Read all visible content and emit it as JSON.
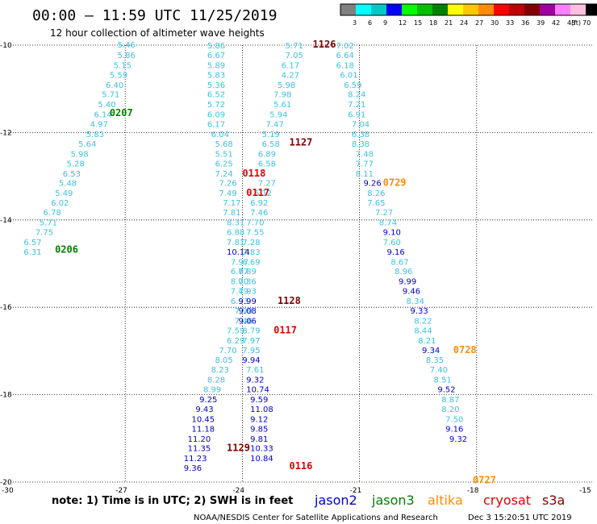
{
  "title": "00:00 — 11:59 UTC 11/25/2019",
  "subtitle": "12 hour collection of altimeter wave heights",
  "colorbar": {
    "unit": "(ft)",
    "labels": [
      "3",
      "6",
      "9",
      "12",
      "15",
      "18",
      "21",
      "24",
      "27",
      "30",
      "33",
      "36",
      "39",
      "42",
      "45",
      "70"
    ],
    "colors": [
      "#808080",
      "#00ffff",
      "#00c8c8",
      "#0000ff",
      "#00ff00",
      "#00c000",
      "#008000",
      "#ffff00",
      "#ffc800",
      "#ff8c00",
      "#ff0000",
      "#c00000",
      "#800000",
      "#a000a0",
      "#ff80ff",
      "#ffc0e0",
      "#000000"
    ]
  },
  "note": "note: 1) Time is in UTC; 2) SWH is in feet",
  "satellites": [
    {
      "name": "jason2",
      "color": "#0000cc"
    },
    {
      "name": "jason3",
      "color": "#008000"
    },
    {
      "name": "altika",
      "color": "#ff8c00"
    },
    {
      "name": "cryosat",
      "color": "#e00000"
    },
    {
      "name": "s3a",
      "color": "#800000"
    }
  ],
  "credit": "NOAA/NESDIS Center for Satellite Applications and Research",
  "timestamp": "Dec  3 15:20:51 UTC 2019",
  "chart_data": {
    "type": "scatter",
    "xlim": [
      -30,
      -15
    ],
    "ylim": [
      -20,
      -10
    ],
    "xticks": [
      -30,
      -27,
      -24,
      -21,
      -18,
      -15
    ],
    "yticks": [
      -10,
      -12,
      -14,
      -16,
      -18,
      -20
    ],
    "grid": true,
    "labels": [
      {
        "text": "5.46",
        "x": -27.2,
        "y": -9.98,
        "color": "#40c0e0"
      },
      {
        "text": "5.86",
        "x": -27.2,
        "y": -10.22,
        "color": "#40c0e0"
      },
      {
        "text": "5.15",
        "x": -27.3,
        "y": -10.45,
        "color": "#40c0e0"
      },
      {
        "text": "5.59",
        "x": -27.4,
        "y": -10.67,
        "color": "#40c0e0"
      },
      {
        "text": "6.40",
        "x": -27.5,
        "y": -10.9,
        "color": "#40c0e0"
      },
      {
        "text": "5.71",
        "x": -27.6,
        "y": -11.12,
        "color": "#40c0e0"
      },
      {
        "text": "5.40",
        "x": -27.7,
        "y": -11.35,
        "color": "#40c0e0"
      },
      {
        "text": "6.14",
        "x": -27.8,
        "y": -11.58,
        "color": "#40c0e0"
      },
      {
        "text": "4.97",
        "x": -27.9,
        "y": -11.8,
        "color": "#40c0e0"
      },
      {
        "text": "5.83",
        "x": -28.0,
        "y": -12.03,
        "color": "#40c0e0"
      },
      {
        "text": "5.64",
        "x": -28.2,
        "y": -12.25,
        "color": "#40c0e0"
      },
      {
        "text": "5.98",
        "x": -28.4,
        "y": -12.48,
        "color": "#40c0e0"
      },
      {
        "text": "5.28",
        "x": -28.5,
        "y": -12.7,
        "color": "#40c0e0"
      },
      {
        "text": "6.53",
        "x": -28.6,
        "y": -12.93,
        "color": "#40c0e0"
      },
      {
        "text": "5.48",
        "x": -28.7,
        "y": -13.15,
        "color": "#40c0e0"
      },
      {
        "text": "5.49",
        "x": -28.8,
        "y": -13.38,
        "color": "#40c0e0"
      },
      {
        "text": "6.02",
        "x": -28.9,
        "y": -13.6,
        "color": "#40c0e0"
      },
      {
        "text": "6.78",
        "x": -29.1,
        "y": -13.82,
        "color": "#40c0e0"
      },
      {
        "text": "5.71",
        "x": -29.2,
        "y": -14.05,
        "color": "#40c0e0"
      },
      {
        "text": "7.75",
        "x": -29.3,
        "y": -14.27,
        "color": "#40c0e0"
      },
      {
        "text": "6.57",
        "x": -29.6,
        "y": -14.5,
        "color": "#40c0e0"
      },
      {
        "text": "6.31",
        "x": -29.6,
        "y": -14.72,
        "color": "#40c0e0"
      },
      {
        "text": "0207",
        "x": -27.4,
        "y": -11.55,
        "color": "#008000",
        "pass": true
      },
      {
        "text": "0206",
        "x": -28.8,
        "y": -14.68,
        "color": "#008000",
        "pass": true
      },
      {
        "text": "5.86",
        "x": -24.9,
        "y": -10.0,
        "color": "#40c0e0"
      },
      {
        "text": "6.67",
        "x": -24.9,
        "y": -10.22,
        "color": "#40c0e0"
      },
      {
        "text": "5.89",
        "x": -24.9,
        "y": -10.45,
        "color": "#40c0e0"
      },
      {
        "text": "5.83",
        "x": -24.9,
        "y": -10.67,
        "color": "#40c0e0"
      },
      {
        "text": "5.36",
        "x": -24.9,
        "y": -10.9,
        "color": "#40c0e0"
      },
      {
        "text": "6.52",
        "x": -24.9,
        "y": -11.12,
        "color": "#40c0e0"
      },
      {
        "text": "5.72",
        "x": -24.9,
        "y": -11.35,
        "color": "#40c0e0"
      },
      {
        "text": "6.09",
        "x": -24.9,
        "y": -11.58,
        "color": "#40c0e0"
      },
      {
        "text": "6.17",
        "x": -24.9,
        "y": -11.8,
        "color": "#40c0e0"
      },
      {
        "text": "6.04",
        "x": -24.8,
        "y": -12.03,
        "color": "#40c0e0"
      },
      {
        "text": "5.68",
        "x": -24.7,
        "y": -12.25,
        "color": "#40c0e0"
      },
      {
        "text": "5.51",
        "x": -24.7,
        "y": -12.48,
        "color": "#40c0e0"
      },
      {
        "text": "6.25",
        "x": -24.7,
        "y": -12.7,
        "color": "#40c0e0"
      },
      {
        "text": "7.24",
        "x": -24.7,
        "y": -12.93,
        "color": "#40c0e0"
      },
      {
        "text": "7.26",
        "x": -24.6,
        "y": -13.15,
        "color": "#40c0e0"
      },
      {
        "text": "7.49",
        "x": -24.6,
        "y": -13.38,
        "color": "#40c0e0"
      },
      {
        "text": "7.17",
        "x": -24.5,
        "y": -13.6,
        "color": "#40c0e0"
      },
      {
        "text": "7.81",
        "x": -24.5,
        "y": -13.82,
        "color": "#40c0e0"
      },
      {
        "text": "8.31",
        "x": -24.4,
        "y": -14.05,
        "color": "#40c0e0"
      },
      {
        "text": "6.88",
        "x": -24.4,
        "y": -14.27,
        "color": "#40c0e0"
      },
      {
        "text": "7.81",
        "x": -24.4,
        "y": -14.5,
        "color": "#40c0e0"
      },
      {
        "text": "10.14",
        "x": -24.4,
        "y": -14.72,
        "color": "#0000cc"
      },
      {
        "text": "7.97",
        "x": -24.3,
        "y": -14.95,
        "color": "#40c0e0"
      },
      {
        "text": "6.77",
        "x": -24.3,
        "y": -15.17,
        "color": "#40c0e0"
      },
      {
        "text": "8.00",
        "x": -24.3,
        "y": -15.4,
        "color": "#40c0e0"
      },
      {
        "text": "7.49",
        "x": -24.3,
        "y": -15.62,
        "color": "#40c0e0"
      },
      {
        "text": "6.93",
        "x": -24.3,
        "y": -15.85,
        "color": "#40c0e0"
      },
      {
        "text": "7.99",
        "x": -24.2,
        "y": -16.07,
        "color": "#40c0e0"
      },
      {
        "text": "7.46",
        "x": -24.2,
        "y": -16.3,
        "color": "#40c0e0"
      },
      {
        "text": "7.59",
        "x": -24.4,
        "y": -16.52,
        "color": "#40c0e0"
      },
      {
        "text": "6.29",
        "x": -24.4,
        "y": -16.75,
        "color": "#40c0e0"
      },
      {
        "text": "7.70",
        "x": -24.6,
        "y": -16.97,
        "color": "#40c0e0"
      },
      {
        "text": "8.05",
        "x": -24.7,
        "y": -17.2,
        "color": "#40c0e0"
      },
      {
        "text": "8.23",
        "x": -24.8,
        "y": -17.42,
        "color": "#40c0e0"
      },
      {
        "text": "8.28",
        "x": -24.9,
        "y": -17.65,
        "color": "#40c0e0"
      },
      {
        "text": "8.99",
        "x": -25.0,
        "y": -17.87,
        "color": "#40c0e0"
      },
      {
        "text": "9.25",
        "x": -25.1,
        "y": -18.1,
        "color": "#0000cc"
      },
      {
        "text": "9.43",
        "x": -25.2,
        "y": -18.32,
        "color": "#0000cc"
      },
      {
        "text": "10.45",
        "x": -25.3,
        "y": -18.55,
        "color": "#0000cc"
      },
      {
        "text": "11.18",
        "x": -25.3,
        "y": -18.77,
        "color": "#0000cc"
      },
      {
        "text": "11.20",
        "x": -25.4,
        "y": -19.0,
        "color": "#0000cc"
      },
      {
        "text": "11.35",
        "x": -25.4,
        "y": -19.22,
        "color": "#0000cc"
      },
      {
        "text": "11.23",
        "x": -25.5,
        "y": -19.45,
        "color": "#0000cc"
      },
      {
        "text": "9.36",
        "x": -25.5,
        "y": -19.67,
        "color": "#0000cc"
      },
      {
        "text": "5.71",
        "x": -22.9,
        "y": -10.0,
        "color": "#40c0e0"
      },
      {
        "text": "7.05",
        "x": -22.9,
        "y": -10.22,
        "color": "#40c0e0"
      },
      {
        "text": "6.17",
        "x": -23.0,
        "y": -10.45,
        "color": "#40c0e0"
      },
      {
        "text": "4.27",
        "x": -23.0,
        "y": -10.67,
        "color": "#40c0e0"
      },
      {
        "text": "5.98",
        "x": -23.1,
        "y": -10.9,
        "color": "#40c0e0"
      },
      {
        "text": "7.98",
        "x": -23.2,
        "y": -11.12,
        "color": "#40c0e0"
      },
      {
        "text": "5.61",
        "x": -23.2,
        "y": -11.35,
        "color": "#40c0e0"
      },
      {
        "text": "5.94",
        "x": -23.3,
        "y": -11.58,
        "color": "#40c0e0"
      },
      {
        "text": "7.47",
        "x": -23.4,
        "y": -11.8,
        "color": "#40c0e0"
      },
      {
        "text": "5.19",
        "x": -23.5,
        "y": -12.03,
        "color": "#40c0e0"
      },
      {
        "text": "6.58",
        "x": -23.5,
        "y": -12.25,
        "color": "#40c0e0"
      },
      {
        "text": "6.89",
        "x": -23.6,
        "y": -12.48,
        "color": "#40c0e0"
      },
      {
        "text": "6.58",
        "x": -23.6,
        "y": -12.7,
        "color": "#40c0e0"
      },
      {
        "text": "7.27",
        "x": -23.6,
        "y": -13.15,
        "color": "#40c0e0"
      },
      {
        "text": "6.12",
        "x": -23.7,
        "y": -13.38,
        "color": "#40c0e0"
      },
      {
        "text": "6.92",
        "x": -23.8,
        "y": -13.6,
        "color": "#40c0e0"
      },
      {
        "text": "7.46",
        "x": -23.8,
        "y": -13.82,
        "color": "#40c0e0"
      },
      {
        "text": "7.70",
        "x": -23.9,
        "y": -14.05,
        "color": "#40c0e0"
      },
      {
        "text": "7.55",
        "x": -23.9,
        "y": -14.27,
        "color": "#40c0e0"
      },
      {
        "text": "7.28",
        "x": -24.0,
        "y": -14.5,
        "color": "#40c0e0"
      },
      {
        "text": "7.83",
        "x": -24.0,
        "y": -14.72,
        "color": "#40c0e0"
      },
      {
        "text": "6.69",
        "x": -24.0,
        "y": -14.95,
        "color": "#40c0e0"
      },
      {
        "text": "6.89",
        "x": -24.1,
        "y": -15.17,
        "color": "#40c0e0"
      },
      {
        "text": "7.36",
        "x": -24.1,
        "y": -15.4,
        "color": "#40c0e0"
      },
      {
        "text": "7.93",
        "x": -24.1,
        "y": -15.62,
        "color": "#40c0e0"
      },
      {
        "text": "9.99",
        "x": -24.1,
        "y": -15.85,
        "color": "#0000cc"
      },
      {
        "text": "9.08",
        "x": -24.1,
        "y": -16.07,
        "color": "#0000cc"
      },
      {
        "text": "9.06",
        "x": -24.1,
        "y": -16.3,
        "color": "#0000cc"
      },
      {
        "text": "8.79",
        "x": -24.0,
        "y": -16.52,
        "color": "#40c0e0"
      },
      {
        "text": "7.97",
        "x": -24.0,
        "y": -16.75,
        "color": "#40c0e0"
      },
      {
        "text": "7.95",
        "x": -24.0,
        "y": -16.97,
        "color": "#40c0e0"
      },
      {
        "text": "9.94",
        "x": -24.0,
        "y": -17.2,
        "color": "#0000cc"
      },
      {
        "text": "7.61",
        "x": -23.9,
        "y": -17.42,
        "color": "#40c0e0"
      },
      {
        "text": "9.32",
        "x": -23.9,
        "y": -17.65,
        "color": "#0000cc"
      },
      {
        "text": "10.74",
        "x": -23.9,
        "y": -17.87,
        "color": "#0000cc"
      },
      {
        "text": "9.59",
        "x": -23.8,
        "y": -18.1,
        "color": "#0000cc"
      },
      {
        "text": "11.08",
        "x": -23.8,
        "y": -18.32,
        "color": "#0000cc"
      },
      {
        "text": "9.12",
        "x": -23.8,
        "y": -18.55,
        "color": "#0000cc"
      },
      {
        "text": "9.85",
        "x": -23.8,
        "y": -18.77,
        "color": "#0000cc"
      },
      {
        "text": "9.81",
        "x": -23.8,
        "y": -19.0,
        "color": "#0000cc"
      },
      {
        "text": "10.33",
        "x": -23.8,
        "y": -19.22,
        "color": "#0000cc"
      },
      {
        "text": "10.84",
        "x": -23.8,
        "y": -19.45,
        "color": "#0000cc"
      },
      {
        "text": "7.02",
        "x": -21.6,
        "y": -10.0,
        "color": "#40c0e0"
      },
      {
        "text": "6.64",
        "x": -21.6,
        "y": -10.22,
        "color": "#40c0e0"
      },
      {
        "text": "6.18",
        "x": -21.6,
        "y": -10.45,
        "color": "#40c0e0"
      },
      {
        "text": "6.01",
        "x": -21.5,
        "y": -10.67,
        "color": "#40c0e0"
      },
      {
        "text": "6.59",
        "x": -21.4,
        "y": -10.9,
        "color": "#40c0e0"
      },
      {
        "text": "8.24",
        "x": -21.3,
        "y": -11.12,
        "color": "#40c0e0"
      },
      {
        "text": "7.21",
        "x": -21.3,
        "y": -11.35,
        "color": "#40c0e0"
      },
      {
        "text": "6.91",
        "x": -21.3,
        "y": -11.58,
        "color": "#40c0e0"
      },
      {
        "text": "7.04",
        "x": -21.2,
        "y": -11.8,
        "color": "#40c0e0"
      },
      {
        "text": "6.38",
        "x": -21.2,
        "y": -12.03,
        "color": "#40c0e0"
      },
      {
        "text": "8.38",
        "x": -21.2,
        "y": -12.25,
        "color": "#40c0e0"
      },
      {
        "text": "7.48",
        "x": -21.1,
        "y": -12.48,
        "color": "#40c0e0"
      },
      {
        "text": "7.77",
        "x": -21.1,
        "y": -12.7,
        "color": "#40c0e0"
      },
      {
        "text": "8.11",
        "x": -21.1,
        "y": -12.93,
        "color": "#40c0e0"
      },
      {
        "text": "9.26",
        "x": -20.9,
        "y": -13.15,
        "color": "#0000cc"
      },
      {
        "text": "8.26",
        "x": -20.8,
        "y": -13.38,
        "color": "#40c0e0"
      },
      {
        "text": "7.65",
        "x": -20.8,
        "y": -13.6,
        "color": "#40c0e0"
      },
      {
        "text": "7.27",
        "x": -20.6,
        "y": -13.82,
        "color": "#40c0e0"
      },
      {
        "text": "8.74",
        "x": -20.5,
        "y": -14.05,
        "color": "#40c0e0"
      },
      {
        "text": "9.10",
        "x": -20.4,
        "y": -14.27,
        "color": "#0000cc"
      },
      {
        "text": "7.60",
        "x": -20.4,
        "y": -14.5,
        "color": "#40c0e0"
      },
      {
        "text": "9.16",
        "x": -20.3,
        "y": -14.72,
        "color": "#0000cc"
      },
      {
        "text": "8.67",
        "x": -20.2,
        "y": -14.95,
        "color": "#40c0e0"
      },
      {
        "text": "8.96",
        "x": -20.1,
        "y": -15.17,
        "color": "#40c0e0"
      },
      {
        "text": "9.99",
        "x": -20.0,
        "y": -15.4,
        "color": "#0000cc"
      },
      {
        "text": "9.46",
        "x": -19.9,
        "y": -15.62,
        "color": "#0000cc"
      },
      {
        "text": "8.34",
        "x": -19.8,
        "y": -15.85,
        "color": "#40c0e0"
      },
      {
        "text": "9.33",
        "x": -19.7,
        "y": -16.07,
        "color": "#0000cc"
      },
      {
        "text": "8.22",
        "x": -19.6,
        "y": -16.3,
        "color": "#40c0e0"
      },
      {
        "text": "8.44",
        "x": -19.6,
        "y": -16.52,
        "color": "#40c0e0"
      },
      {
        "text": "8.21",
        "x": -19.5,
        "y": -16.75,
        "color": "#40c0e0"
      },
      {
        "text": "9.34",
        "x": -19.4,
        "y": -16.97,
        "color": "#0000cc"
      },
      {
        "text": "8.35",
        "x": -19.3,
        "y": -17.2,
        "color": "#40c0e0"
      },
      {
        "text": "7.40",
        "x": -19.2,
        "y": -17.42,
        "color": "#40c0e0"
      },
      {
        "text": "8.51",
        "x": -19.1,
        "y": -17.65,
        "color": "#40c0e0"
      },
      {
        "text": "9.52",
        "x": -19.0,
        "y": -17.87,
        "color": "#0000cc"
      },
      {
        "text": "8.87",
        "x": -18.9,
        "y": -18.1,
        "color": "#40c0e0"
      },
      {
        "text": "8.20",
        "x": -18.9,
        "y": -18.32,
        "color": "#40c0e0"
      },
      {
        "text": "7.50",
        "x": -18.8,
        "y": -18.55,
        "color": "#40c0e0"
      },
      {
        "text": "9.16",
        "x": -18.8,
        "y": -18.77,
        "color": "#0000cc"
      },
      {
        "text": "9.32",
        "x": -18.7,
        "y": -19.0,
        "color": "#0000cc"
      },
      {
        "text": "1126",
        "x": -22.2,
        "y": -9.98,
        "color": "#800000",
        "pass": true
      },
      {
        "text": "1127",
        "x": -22.8,
        "y": -12.22,
        "color": "#800000",
        "pass": true
      },
      {
        "text": "0118",
        "x": -24.0,
        "y": -12.93,
        "color": "#e00000",
        "pass": true
      },
      {
        "text": "0117",
        "x": -23.9,
        "y": -13.38,
        "color": "#e00000",
        "pass": true
      },
      {
        "text": "0729",
        "x": -20.4,
        "y": -13.15,
        "color": "#ff8c00",
        "pass": true
      },
      {
        "text": "1128",
        "x": -23.1,
        "y": -15.85,
        "color": "#800000",
        "pass": true
      },
      {
        "text": "0117",
        "x": -23.2,
        "y": -16.52,
        "color": "#e00000",
        "pass": true
      },
      {
        "text": "0728",
        "x": -18.6,
        "y": -16.97,
        "color": "#ff8c00",
        "pass": true
      },
      {
        "text": "1129",
        "x": -24.4,
        "y": -19.22,
        "color": "#800000",
        "pass": true
      },
      {
        "text": "0116",
        "x": -22.8,
        "y": -19.63,
        "color": "#e00000",
        "pass": true
      },
      {
        "text": "0727",
        "x": -18.1,
        "y": -19.95,
        "color": "#ff8c00",
        "pass": true
      }
    ]
  }
}
